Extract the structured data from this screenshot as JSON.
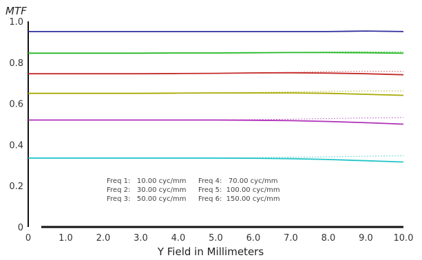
{
  "chart_data": {
    "type": "line",
    "title": "",
    "ylabel": "MTF",
    "xlabel": "Y Field in Millimeters",
    "xlim": [
      0,
      10
    ],
    "ylim": [
      0,
      1
    ],
    "x_ticks": [
      "0",
      "1.0",
      "2.0",
      "3.0",
      "4.0",
      "5.0",
      "6.0",
      "7.0",
      "8.0",
      "9.0",
      "10.0"
    ],
    "y_ticks": [
      "0",
      "0.2",
      "0.4",
      "0.6",
      "0.8",
      "1.0"
    ],
    "x": [
      0,
      1,
      2,
      3,
      4,
      5,
      6,
      7,
      8,
      9,
      10
    ],
    "series": [
      {
        "color": "#2f2f9f",
        "solid": [
          0.95,
          0.95,
          0.95,
          0.95,
          0.95,
          0.95,
          0.95,
          0.95,
          0.95,
          0.953,
          0.95
        ],
        "dashed": [
          0.95,
          0.95,
          0.95,
          0.95,
          0.95,
          0.95,
          0.95,
          0.95,
          0.95,
          0.953,
          0.952
        ]
      },
      {
        "color": "#22b822",
        "solid": [
          0.845,
          0.845,
          0.845,
          0.845,
          0.846,
          0.846,
          0.847,
          0.848,
          0.848,
          0.847,
          0.845
        ],
        "dashed": [
          0.845,
          0.845,
          0.845,
          0.845,
          0.846,
          0.846,
          0.847,
          0.849,
          0.851,
          0.853,
          0.852
        ]
      },
      {
        "color": "#c42a2a",
        "solid": [
          0.745,
          0.745,
          0.745,
          0.745,
          0.746,
          0.747,
          0.749,
          0.75,
          0.748,
          0.745,
          0.74
        ],
        "dashed": [
          0.745,
          0.745,
          0.745,
          0.745,
          0.746,
          0.747,
          0.75,
          0.752,
          0.755,
          0.757,
          0.756
        ]
      },
      {
        "color": "#a8a800",
        "solid": [
          0.65,
          0.65,
          0.65,
          0.65,
          0.651,
          0.652,
          0.652,
          0.652,
          0.65,
          0.645,
          0.64
        ],
        "dashed": [
          0.65,
          0.65,
          0.65,
          0.65,
          0.651,
          0.652,
          0.654,
          0.657,
          0.66,
          0.662,
          0.662
        ]
      },
      {
        "color": "#b02fb8",
        "solid": [
          0.52,
          0.52,
          0.52,
          0.52,
          0.52,
          0.52,
          0.519,
          0.517,
          0.513,
          0.507,
          0.5
        ],
        "dashed": [
          0.52,
          0.52,
          0.52,
          0.52,
          0.52,
          0.521,
          0.522,
          0.524,
          0.527,
          0.53,
          0.532
        ]
      },
      {
        "color": "#22c4c8",
        "solid": [
          0.335,
          0.335,
          0.335,
          0.335,
          0.335,
          0.335,
          0.334,
          0.332,
          0.328,
          0.322,
          0.316
        ],
        "dashed": [
          0.335,
          0.335,
          0.335,
          0.335,
          0.335,
          0.336,
          0.337,
          0.339,
          0.341,
          0.344,
          0.346
        ]
      }
    ],
    "legend": [
      "Freq 1:   10.00 cyc/mm",
      "Freq 2:   30.00 cyc/mm",
      "Freq 3:   50.00 cyc/mm",
      "Freq 4:   70.00 cyc/mm",
      "Freq 5:  100.00 cyc/mm",
      "Freq 6:  150.00 cyc/mm"
    ],
    "grid": false,
    "legend_position": "bottom-center inside plot"
  }
}
